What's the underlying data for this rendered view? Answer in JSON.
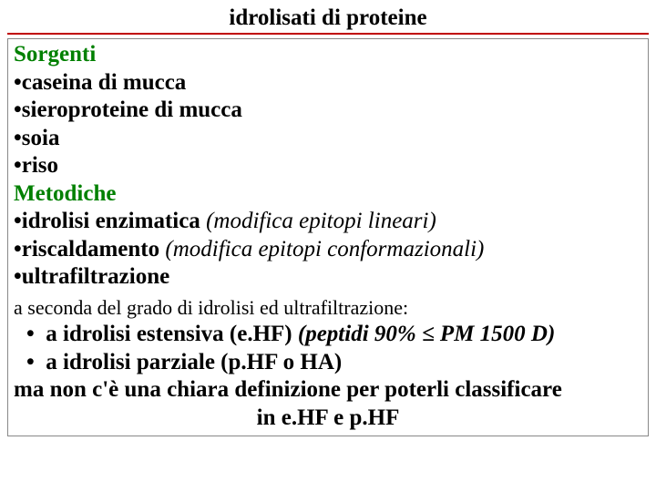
{
  "colors": {
    "title_text": "#000000",
    "title_underline": "#c00000",
    "heading_green": "#008000",
    "body_text": "#000000",
    "box_border": "#888888",
    "background": "#ffffff"
  },
  "typography": {
    "family": "Times New Roman",
    "title_fontsize_pt": 19,
    "body_fontsize_pt": 19,
    "subline_fontsize_pt": 17,
    "title_weight": "bold",
    "heading_weight": "bold",
    "item_weight": "bold",
    "note_style": "italic"
  },
  "title": "idrolisati di proteine",
  "sections": {
    "sorgenti": {
      "heading": "Sorgenti",
      "items": [
        "caseina di mucca",
        "sieroproteine di mucca",
        "soia",
        "riso"
      ]
    },
    "metodiche": {
      "heading": "Metodiche",
      "items": [
        {
          "text": "idrolisi enzimatica",
          "note": "(modifica epitopi lineari)"
        },
        {
          "text": "riscaldamento",
          "note": "(modifica epitopi conformazionali)"
        },
        {
          "text": "ultrafiltrazione",
          "note": ""
        }
      ]
    }
  },
  "subline": "a seconda del grado di idrolisi ed ultrafiltrazione:",
  "bullet_char": "•",
  "list2": [
    {
      "label": "a idrolisi estensiva (e.HF)",
      "note": "(peptidi 90% ≤ PM 1500 D)"
    },
    {
      "label": "a idrolisi parziale (p.HF o HA)",
      "note": ""
    }
  ],
  "final1": "ma non c'è una chiara definizione per poterli classificare",
  "final2": "in e.HF e p.HF"
}
